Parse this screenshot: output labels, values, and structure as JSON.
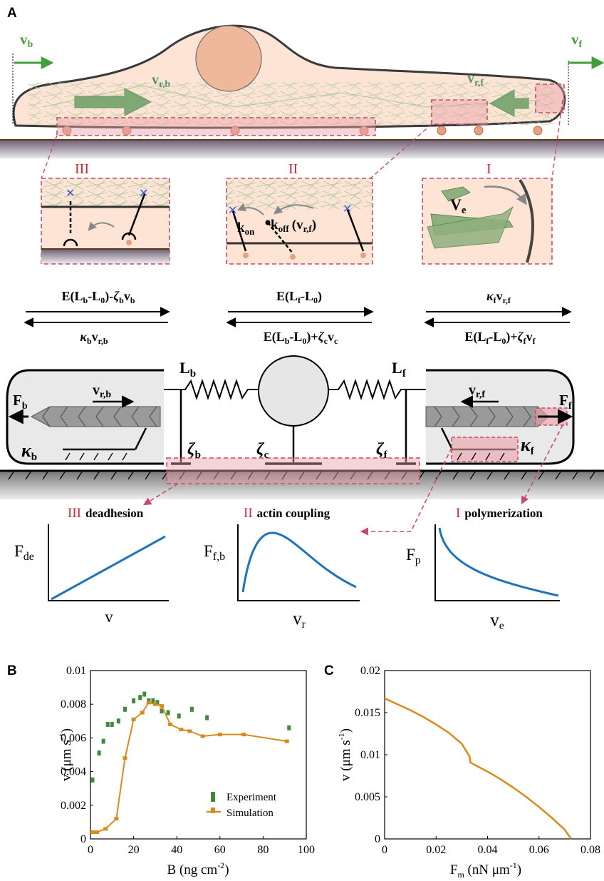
{
  "panels": {
    "A": {
      "letter": "A",
      "cell_labels": {
        "vb": "v",
        "vb_sub": "b",
        "vf": "v",
        "vf_sub": "f",
        "vrb": "v",
        "vrb_sub": "r,b",
        "vrf": "v",
        "vrf_sub": "r,f"
      },
      "insets": {
        "III": {
          "numeral": "III"
        },
        "II": {
          "numeral": "II",
          "kon": "k",
          "kon_sub": "on",
          "koff": "k",
          "koff_sub": "off",
          "koff_arg": "(v",
          "koff_arg_sub": "r,f",
          "koff_close": ")"
        },
        "I": {
          "numeral": "I",
          "ve": "V",
          "ve_sub": "e"
        }
      },
      "forces": {
        "left_top": "E(L_b-L_0)-ζ_b v_b",
        "left_bottom": "κ_b v_r,b",
        "mid_top": "E(L_f-L_0)",
        "mid_bottom": "E(L_b-L_0)+ζ_c v_c",
        "right_top": "κ_f v_r,f",
        "right_bottom": "E(L_f-L_0)+ζ_f v_f"
      },
      "model": {
        "Lb": "L",
        "Lb_sub": "b",
        "Lf": "L",
        "Lf_sub": "f",
        "Fb": "F",
        "Fb_sub": "b",
        "Ff": "F",
        "Ff_sub": "f",
        "vrb": "v",
        "vrb_sub": "r,b",
        "vrf": "v",
        "vrf_sub": "r,f",
        "kb": "κ",
        "kb_sub": "b",
        "kf": "κ",
        "kf_sub": "f",
        "zb": "ζ",
        "zb_sub": "b",
        "zc": "ζ",
        "zc_sub": "c",
        "zf": "ζ",
        "zf_sub": "f"
      },
      "mechanisms": [
        {
          "numeral": "III",
          "name": "deadhesion",
          "ylabel": "F",
          "ylabel_sub": "de",
          "xlabel": "v",
          "xlabel_sub": ""
        },
        {
          "numeral": "II",
          "name": "actin coupling",
          "ylabel": "F",
          "ylabel_sub": "f,b",
          "xlabel": "v",
          "xlabel_sub": "r"
        },
        {
          "numeral": "I",
          "name": "polymerization",
          "ylabel": "F",
          "ylabel_sub": "p",
          "xlabel": "v",
          "xlabel_sub": "e"
        }
      ]
    },
    "B": {
      "letter": "B",
      "xlabel": "B (ng cm",
      "xlabel_sup": "-2",
      "xlabel_end": ")",
      "ylabel": "v (μm s",
      "ylabel_sup": "-1",
      "ylabel_end": ")",
      "xticks": [
        "0",
        "20",
        "40",
        "60",
        "80",
        "100"
      ],
      "yticks": [
        "0",
        "0.002",
        "0.004",
        "0.006",
        "0.008",
        "0.01"
      ],
      "legend": [
        "Experiment",
        "Simulation"
      ]
    },
    "C": {
      "letter": "C",
      "xlabel": "F",
      "xlabel_sub": "m",
      "xlabel_rest": " (nN μm",
      "xlabel_sup": "-1",
      "xlabel_end": ")",
      "ylabel": "v (μm s",
      "ylabel_sup": "-1",
      "ylabel_end": ")",
      "xticks": [
        "0",
        "0.02",
        "0.04",
        "0.06",
        "0.08"
      ],
      "yticks": [
        "0",
        "0.005",
        "0.01",
        "0.015",
        "0.02"
      ]
    }
  },
  "colors": {
    "orange": "#d98a1e",
    "green": "#3f8a3c",
    "blue": "#1f74b8",
    "pink": "#c84a6a",
    "red_roman": "#c8283a"
  },
  "chart_data": [
    {
      "type": "scatter",
      "panel": "B",
      "xlim": [
        0,
        100
      ],
      "ylim": [
        0,
        0.01
      ],
      "series": [
        {
          "name": "Experiment",
          "x": [
            1,
            4,
            6,
            8,
            10,
            13,
            16,
            20,
            23,
            25,
            27,
            29,
            31,
            33,
            36,
            41,
            47,
            54,
            92
          ],
          "y": [
            0.0035,
            0.0051,
            0.0058,
            0.0068,
            0.0068,
            0.007,
            0.0077,
            0.0082,
            0.0084,
            0.0086,
            0.0082,
            0.0082,
            0.0081,
            0.0076,
            0.0075,
            0.0073,
            0.0077,
            0.0072,
            0.0066
          ]
        },
        {
          "name": "Simulation",
          "x": [
            1,
            3,
            7,
            12,
            16,
            20,
            24,
            27,
            30,
            33,
            37,
            42,
            46,
            52,
            60,
            71,
            91
          ],
          "y": [
            0.0004,
            0.0004,
            0.0006,
            0.0012,
            0.0048,
            0.0071,
            0.0075,
            0.0081,
            0.008,
            0.0079,
            0.0068,
            0.0065,
            0.0064,
            0.0061,
            0.0062,
            0.0062,
            0.0058
          ]
        }
      ]
    },
    {
      "type": "line",
      "panel": "C",
      "xlim": [
        0,
        0.08
      ],
      "ylim": [
        0,
        0.02
      ],
      "series": [
        {
          "x": [
            0,
            0.005,
            0.01,
            0.015,
            0.02,
            0.025,
            0.03,
            0.033,
            0.0333,
            0.035,
            0.04,
            0.045,
            0.05,
            0.055,
            0.06,
            0.065,
            0.07,
            0.0725
          ],
          "y": [
            0.0167,
            0.016,
            0.0153,
            0.0145,
            0.0136,
            0.0126,
            0.0113,
            0.0098,
            0.0091,
            0.0088,
            0.008,
            0.0071,
            0.0061,
            0.005,
            0.0038,
            0.0025,
            0.0011,
            0.0
          ]
        }
      ]
    }
  ]
}
